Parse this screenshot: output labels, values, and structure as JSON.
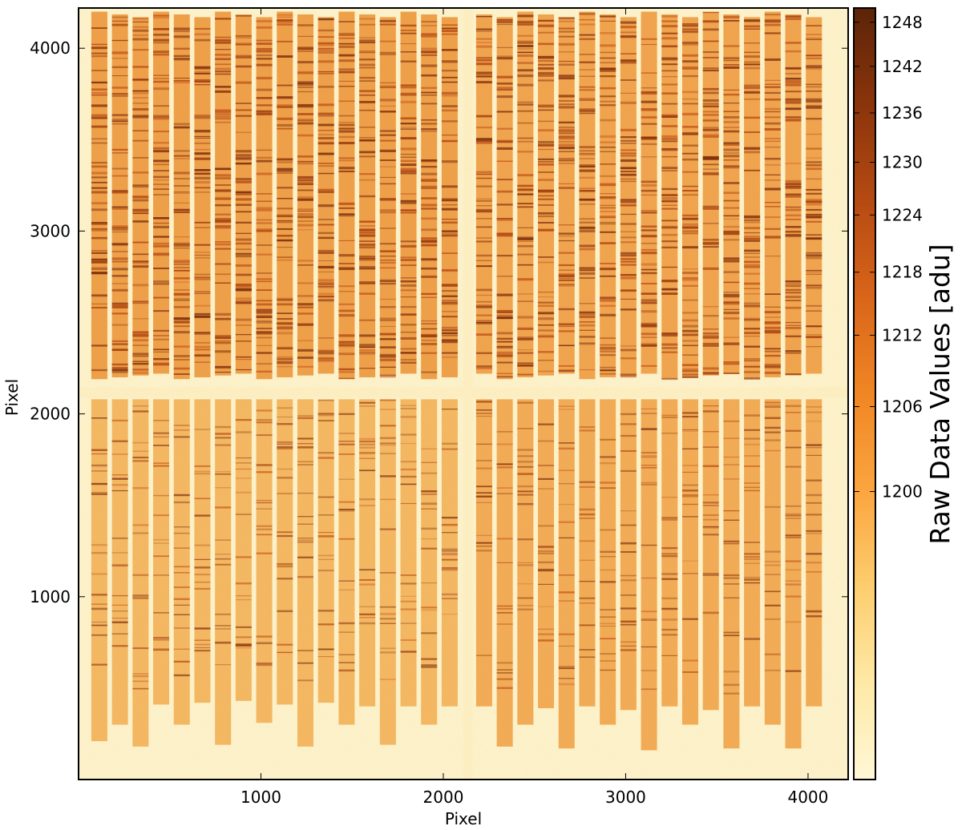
{
  "chart_data": {
    "type": "heatmap",
    "title": "",
    "xlabel": "Pixel",
    "ylabel": "Pixel",
    "xlim": [
      0,
      4220
    ],
    "ylim": [
      0,
      4220
    ],
    "xticks": [
      1000,
      2000,
      3000,
      4000
    ],
    "yticks": [
      1000,
      2000,
      3000,
      4000
    ],
    "colorbar": {
      "label": "Raw Data Values [adu]",
      "range": [
        1190,
        1250
      ],
      "ticks": [
        1200,
        1206,
        1212,
        1218,
        1224,
        1230,
        1236,
        1242,
        1248
      ],
      "colors": [
        "#fff8d6",
        "#fee9a6",
        "#fdcd6e",
        "#fba53f",
        "#f08624",
        "#d9651a",
        "#b54a12",
        "#8a340c",
        "#5c2408"
      ]
    },
    "detector": {
      "gap_x": [
        2110,
        2160
      ],
      "gap_y": [
        2090,
        2145
      ],
      "slit_pitch": 113,
      "slit_width": 88,
      "slit_x_start": 70,
      "slit_x_end": 4170,
      "top_slit_range": [
        2190,
        4200
      ],
      "bottom_slit_top": 2080,
      "bottom_slit_ends": [
        210,
        300,
        180,
        410,
        300,
        420,
        190,
        430,
        310,
        410,
        180,
        420,
        300,
        400,
        190,
        400,
        300,
        400,
        270,
        400,
        180,
        300,
        390,
        170,
        400,
        300,
        380,
        160,
        400,
        300,
        380,
        170,
        400,
        300,
        170,
        400,
        300,
        200
      ]
    }
  }
}
